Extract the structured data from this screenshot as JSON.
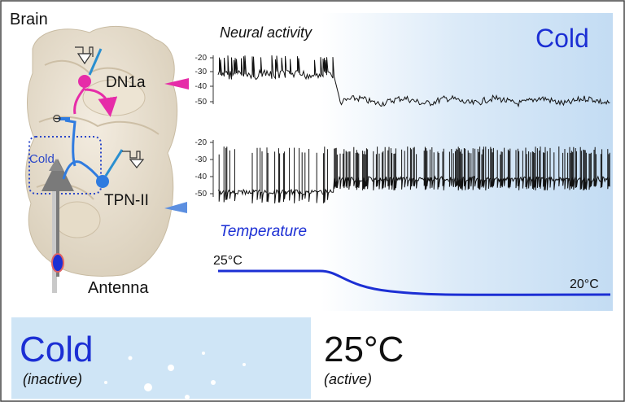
{
  "brain_panel": {
    "title": "Brain",
    "neuron_upper": "DN1a",
    "neuron_lower": "TPN-II",
    "cold_region": "Cold",
    "input_organ": "Antenna",
    "inhibition_mark": "⊖"
  },
  "traces": {
    "section_title": "Neural activity",
    "condition_label": "Cold",
    "dn1a_ticks": [
      "-20",
      "-30",
      "-40",
      "-50"
    ],
    "tpn_ticks": [
      "-20",
      "-30",
      "-40",
      "-50"
    ]
  },
  "temperature": {
    "section_title": "Temperature",
    "start_label": "25°C",
    "end_label": "20°C",
    "start_c": 25,
    "end_c": 20,
    "drop_start_fraction": 0.26,
    "drop_end_fraction": 0.62
  },
  "bottom": {
    "left_title": "Cold",
    "left_state": "(inactive)",
    "right_title": "25°C",
    "right_state": "(active)"
  },
  "colors": {
    "magenta": "#e62ca8",
    "blue": "#2f7be0",
    "dark_blue": "#1c2fd4",
    "cold_bg": "#cfe5f6"
  }
}
